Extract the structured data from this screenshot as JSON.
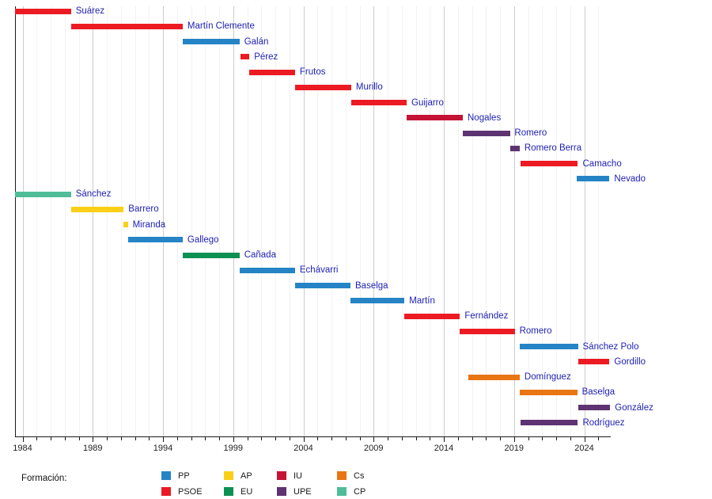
{
  "chart_data": {
    "type": "bar",
    "variant": "gantt-timeline",
    "title": "",
    "x_axis": {
      "range": [
        1983.45,
        2025.9
      ],
      "major_tick_years": [
        1984,
        1989,
        1994,
        1999,
        2004,
        2009,
        2014,
        2019,
        2024
      ],
      "major_tick_labels": [
        "1984",
        "1989",
        "1994",
        "1999",
        "2004",
        "2009",
        "2014",
        "2019",
        "2024"
      ],
      "minor_tick_interval_years": 1,
      "gridlines": "vertical, every year (major lines every 5 years)"
    },
    "parties": {
      "PP": "#2484C6",
      "PSOE": "#EC1B23",
      "AP": "#FBCF18",
      "EU": "#0D9153",
      "IU": "#C41334",
      "UPE": "#5E3371",
      "Cs": "#E97513",
      "CP": "#4EBD98"
    },
    "bars": [
      {
        "name": "Suárez",
        "party": "PSOE",
        "start": 1983.45,
        "end": 1987.45
      },
      {
        "name": "Martín Clemente",
        "party": "PSOE",
        "start": 1987.45,
        "end": 1995.4
      },
      {
        "name": "Galán",
        "party": "PP",
        "start": 1995.4,
        "end": 1999.45
      },
      {
        "name": "Pérez",
        "party": "PSOE",
        "start": 1999.5,
        "end": 2000.15
      },
      {
        "name": "Frutos",
        "party": "PSOE",
        "start": 2000.15,
        "end": 2003.4
      },
      {
        "name": "Murillo",
        "party": "PSOE",
        "start": 2003.4,
        "end": 2007.4
      },
      {
        "name": "Guijarro",
        "party": "PSOE",
        "start": 2007.4,
        "end": 2011.35
      },
      {
        "name": "Nogales",
        "party": "IU",
        "start": 2011.35,
        "end": 2015.35
      },
      {
        "name": "Romero",
        "party": "UPE",
        "start": 2015.35,
        "end": 2018.7
      },
      {
        "name": "Romero Berra",
        "party": "UPE",
        "start": 2018.75,
        "end": 2019.4
      },
      {
        "name": "Camacho",
        "party": "PSOE",
        "start": 2019.45,
        "end": 2023.55
      },
      {
        "name": "Nevado",
        "party": "PP",
        "start": 2023.45,
        "end": 2025.8
      },
      {
        "name": "Sánchez",
        "party": "CP",
        "start": 1983.45,
        "end": 1987.45
      },
      {
        "name": "Barrero",
        "party": "AP",
        "start": 1987.45,
        "end": 1991.2
      },
      {
        "name": "Miranda",
        "party": "AP",
        "start": 1991.2,
        "end": 1991.5
      },
      {
        "name": "Gallego",
        "party": "PP",
        "start": 1991.5,
        "end": 1995.4
      },
      {
        "name": "Cañada",
        "party": "EU",
        "start": 1995.4,
        "end": 1999.45
      },
      {
        "name": "Echávarri",
        "party": "PP",
        "start": 1999.45,
        "end": 2003.4
      },
      {
        "name": "Baselga",
        "party": "PP",
        "start": 2003.4,
        "end": 2007.35
      },
      {
        "name": "Martín",
        "party": "PP",
        "start": 2007.35,
        "end": 2011.2
      },
      {
        "name": "Fernández",
        "party": "PSOE",
        "start": 2011.2,
        "end": 2015.15
      },
      {
        "name": "Romero",
        "party": "PSOE",
        "start": 2015.15,
        "end": 2019.05
      },
      {
        "name": "Sánchez Polo",
        "party": "PP",
        "start": 2019.4,
        "end": 2023.55
      },
      {
        "name": "Gordillo",
        "party": "PSOE",
        "start": 2023.55,
        "end": 2025.8
      },
      {
        "name": "Domínguez",
        "party": "Cs",
        "start": 2015.75,
        "end": 2019.4
      },
      {
        "name": "Baselga",
        "party": "Cs",
        "start": 2019.4,
        "end": 2023.5
      },
      {
        "name": "González",
        "party": "UPE",
        "start": 2023.55,
        "end": 2025.85
      },
      {
        "name": "Rodríguez",
        "party": "UPE",
        "start": 2019.45,
        "end": 2023.55
      }
    ],
    "legend": {
      "title": "Formación:",
      "position": "bottom",
      "columns": [
        [
          {
            "label": "PP",
            "color": "#2484C6"
          },
          {
            "label": "PSOE",
            "color": "#EC1B23"
          }
        ],
        [
          {
            "label": "AP",
            "color": "#FBCF18"
          },
          {
            "label": "EU",
            "color": "#0D9153"
          }
        ],
        [
          {
            "label": "IU",
            "color": "#C41334"
          },
          {
            "label": "UPE",
            "color": "#5E3371"
          }
        ],
        [
          {
            "label": "Cs",
            "color": "#E97513"
          },
          {
            "label": "CP",
            "color": "#4EBD98"
          }
        ]
      ]
    },
    "label_text_color": "#1e1eb4",
    "axis_text_color": "#222222"
  }
}
